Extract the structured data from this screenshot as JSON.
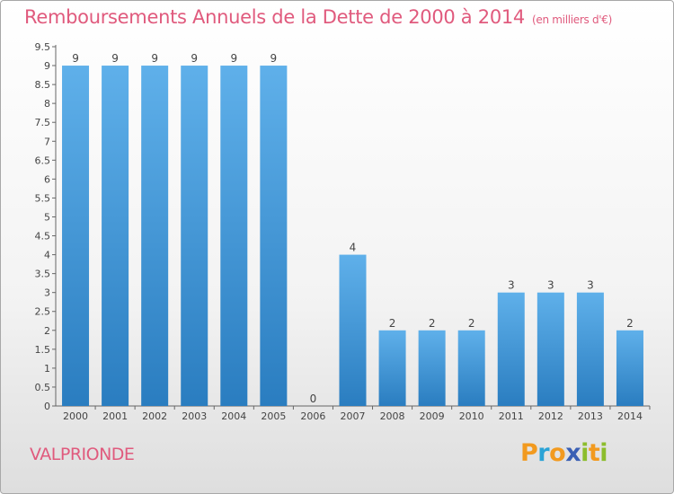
{
  "chart_data": {
    "type": "bar",
    "title": "Remboursements Annuels de la Dette de 2000 à 2014",
    "subtitle": "(en milliers d'€)",
    "categories": [
      "2000",
      "2001",
      "2002",
      "2003",
      "2004",
      "2005",
      "2006",
      "2007",
      "2008",
      "2009",
      "2010",
      "2011",
      "2012",
      "2013",
      "2014"
    ],
    "values": [
      9,
      9,
      9,
      9,
      9,
      9,
      0,
      4,
      2,
      2,
      2,
      3,
      3,
      3,
      2
    ],
    "data_labels": [
      "9",
      "9",
      "9",
      "9",
      "9",
      "9",
      "0",
      "4",
      "2",
      "2",
      "2",
      "3",
      "3",
      "3",
      "2"
    ],
    "y_ticks": [
      "0",
      "0.5",
      "1",
      "1.5",
      "2",
      "2.5",
      "3",
      "3.5",
      "4",
      "4.5",
      "5",
      "5.5",
      "6",
      "6.5",
      "7",
      "7.5",
      "8",
      "8.5",
      "9",
      "9.5"
    ],
    "ylim": [
      0,
      9.5
    ],
    "grid": false,
    "legend": "none",
    "colors": {
      "bar_light": "#5fb0ea",
      "bar_dark": "#2a7dc0",
      "title": "#e05a7d",
      "axis": "#666666"
    }
  },
  "place_name": "VALPRIONDE",
  "logo": {
    "text": "Proxiti",
    "letters": [
      {
        "ch": "P",
        "color": "#f29a1f"
      },
      {
        "ch": "r",
        "color": "#2aa3d6"
      },
      {
        "ch": "o",
        "color": "#f29a1f"
      },
      {
        "ch": "x",
        "color": "#3a5fb4"
      },
      {
        "ch": "i",
        "color": "#8cbd2c"
      },
      {
        "ch": "t",
        "color": "#f29a1f"
      },
      {
        "ch": "i",
        "color": "#8cbd2c"
      }
    ]
  }
}
